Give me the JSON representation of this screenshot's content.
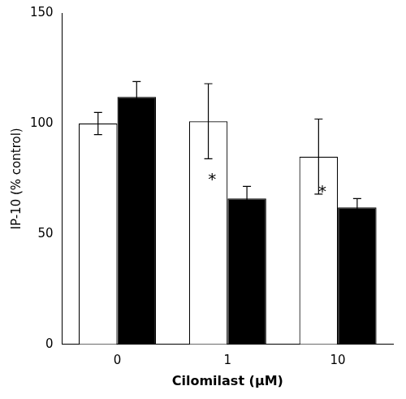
{
  "chart_data": {
    "type": "bar",
    "xlabel": "Cilomilast (μM)",
    "ylabel": "IP-10 (% control)",
    "categories": [
      "0",
      "1",
      "10"
    ],
    "series": [
      {
        "color": "#ffffff",
        "values": [
          100.0,
          101.0,
          85.0
        ],
        "errors": [
          5.0,
          17.0,
          17.0
        ]
      },
      {
        "color": "#000000",
        "values": [
          112.0,
          66.0,
          62.0
        ],
        "errors": [
          7.0,
          5.5,
          4.0
        ]
      }
    ],
    "annotations": [
      {
        "text": "*",
        "category": "1"
      },
      {
        "text": "*",
        "category": "10"
      }
    ],
    "ylim": [
      0,
      150
    ],
    "yticks": [
      0,
      50,
      100,
      150
    ],
    "grid": false
  }
}
